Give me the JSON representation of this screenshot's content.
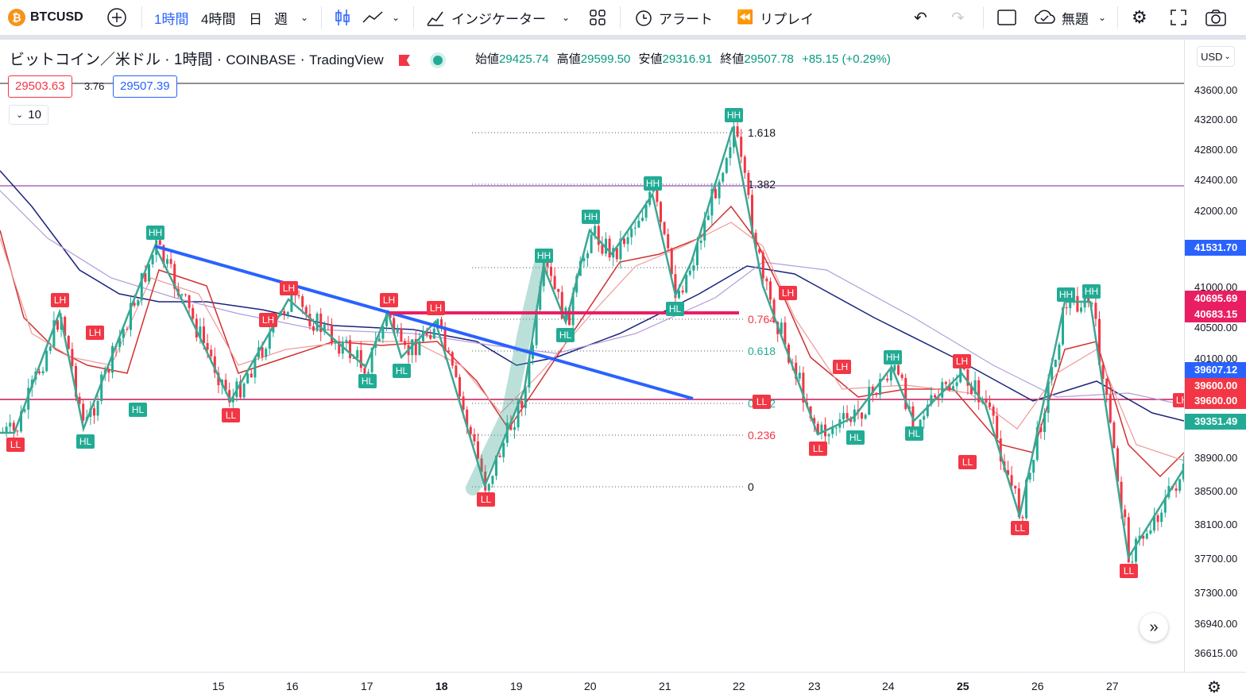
{
  "toolbar": {
    "symbol": "BTCUSD",
    "symbol_icon": "bitcoin-icon",
    "intervals": [
      "1時間",
      "4時間",
      "日",
      "週"
    ],
    "indicators_label": "インジケーター",
    "alert_label": "アラート",
    "replay_label": "リプレイ",
    "layout_label": "無題"
  },
  "legend": {
    "title_name": "ビットコイン／米ドル",
    "title_interval": "1時間",
    "title_exchange": "COINBASE",
    "title_source": "TradingView",
    "open_label": "始値",
    "open": "29425.74",
    "high_label": "高値",
    "high": "29599.50",
    "low_label": "安値",
    "low": "29316.91",
    "close_label": "終値",
    "close": "29507.78",
    "change": "+85.15 (+0.29%)",
    "bid": "29503.63",
    "spread": "3.76",
    "ask": "29507.39",
    "collapse_count": "10"
  },
  "price_axis": {
    "currency": "USD",
    "ticks": [
      "43600.00",
      "43200.00",
      "42800.00",
      "42400.00",
      "42000.00",
      "41000.00",
      "40500.00",
      "40100.00",
      "38900.00",
      "38500.00",
      "38100.00",
      "37700.00",
      "37300.00",
      "36940.00",
      "36615.00"
    ],
    "badges": [
      {
        "value": "41531.70",
        "color": "#2962ff"
      },
      {
        "value": "40695.69",
        "color": "#e91e63"
      },
      {
        "value": "40683.15",
        "color": "#e91e63"
      },
      {
        "value": "39607.12",
        "color": "#2962ff"
      },
      {
        "value": "39600.00",
        "color": "#f23645"
      },
      {
        "value": "39600.00",
        "color": "#f23645"
      },
      {
        "value": "39351.49",
        "color": "#22ab94"
      }
    ]
  },
  "time_axis": {
    "labels": [
      "15",
      "16",
      "17",
      "18",
      "19",
      "20",
      "21",
      "22",
      "23",
      "24",
      "25",
      "26",
      "27"
    ]
  },
  "fib_levels": [
    "1.618",
    "1.382",
    "0.764",
    "0.618",
    "0.382",
    "0.236",
    "0"
  ],
  "swing_labels": {
    "HH": "HH",
    "HL": "HL",
    "LH": "LH",
    "LL": "LL"
  },
  "colors": {
    "up": "#22ab94",
    "down": "#f23645",
    "trend_blue": "#2962ff",
    "magenta": "#e91e63",
    "zigzag": "#3da693"
  }
}
